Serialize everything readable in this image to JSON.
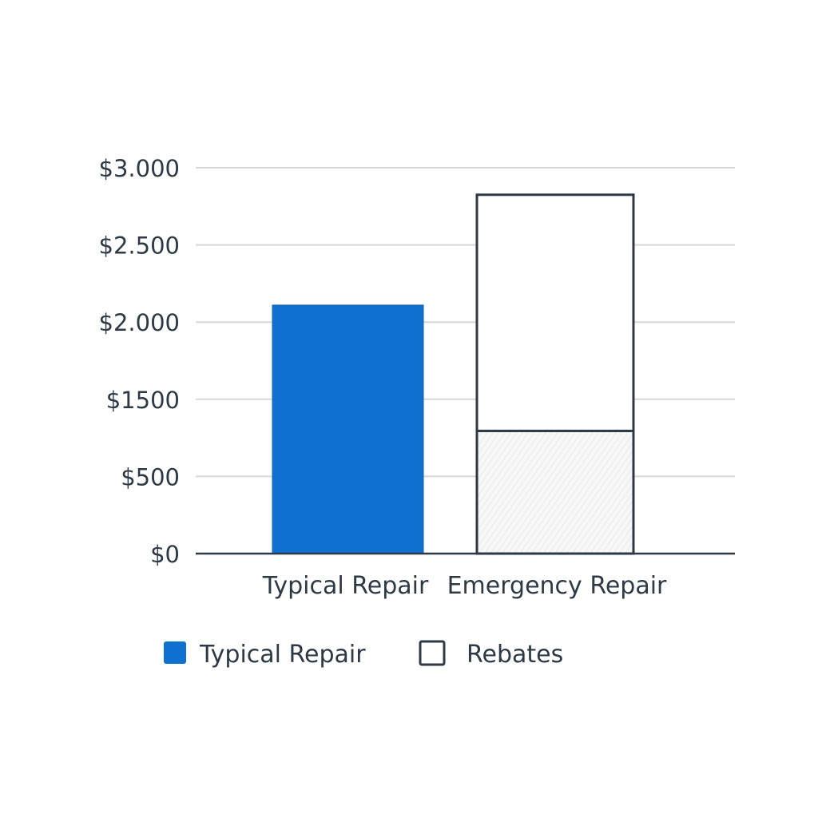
{
  "chart_data": {
    "type": "bar",
    "stacked": true,
    "title": "",
    "xlabel": "",
    "ylabel": "",
    "categories": [
      "Typical Repair",
      "Emergency Repair"
    ],
    "y_ticks": [
      {
        "value": 0,
        "label": "$0"
      },
      {
        "value": 500,
        "label": "$500"
      },
      {
        "value": 1500,
        "label": "$1500"
      },
      {
        "value": 2000,
        "label": "$2.000"
      },
      {
        "value": 2500,
        "label": "$2.500"
      },
      {
        "value": 3000,
        "label": "$3.000"
      }
    ],
    "ylim": [
      0,
      3000
    ],
    "grid": true,
    "series": [
      {
        "name": "Typical Repair",
        "values": [
          2110,
          0
        ],
        "color": "#1070d0",
        "style": "solid"
      },
      {
        "values": [
          0,
          1090
        ],
        "color": "#f4f4f4",
        "style": "hatched"
      },
      {
        "name": "Rebates",
        "values": [
          0,
          1735
        ],
        "color": "#ffffff",
        "style": "outlined"
      }
    ],
    "legend": {
      "placement": "bottom",
      "items": [
        {
          "label": "Typical Repair",
          "color": "#1070d0",
          "style": "solid"
        },
        {
          "label": "Rebates",
          "color": "#ffffff",
          "style": "outlined"
        }
      ]
    }
  }
}
